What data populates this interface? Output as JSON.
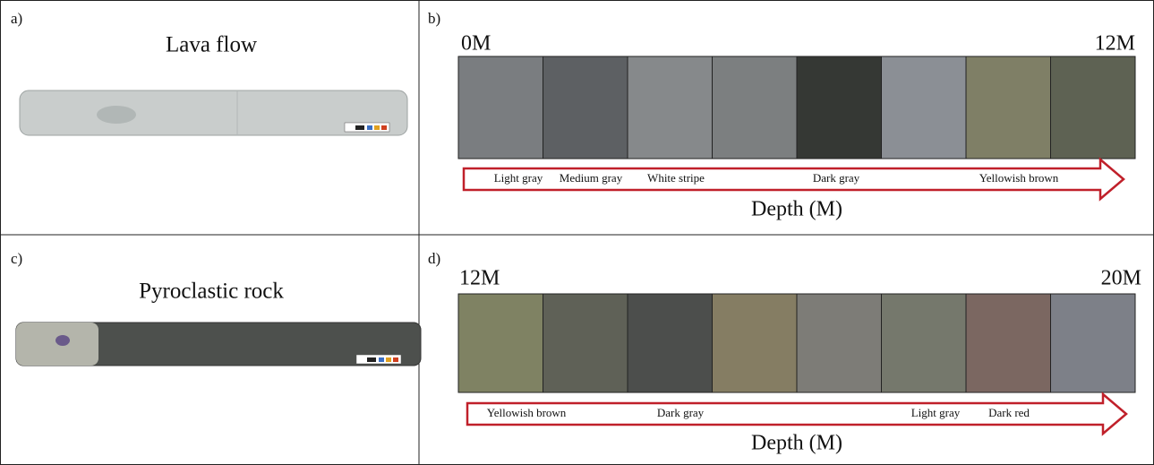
{
  "panels": [
    {
      "label": "a)",
      "title": "Lava flow"
    },
    {
      "label": "b)",
      "start": "0M",
      "end": "12M",
      "arrow_labels": [
        "Light gray",
        "Medium gray",
        "White stripe",
        "Dark gray",
        "Yellowish brown"
      ],
      "axis_label": "Depth (M)"
    },
    {
      "label": "c)",
      "title": "Pyroclastic rock"
    },
    {
      "label": "d)",
      "start": "12M",
      "end": "20M",
      "arrow_labels": [
        "Yellowish brown",
        "Dark gray",
        "Light gray",
        "Dark red"
      ],
      "axis_label": "Depth (M)"
    }
  ]
}
